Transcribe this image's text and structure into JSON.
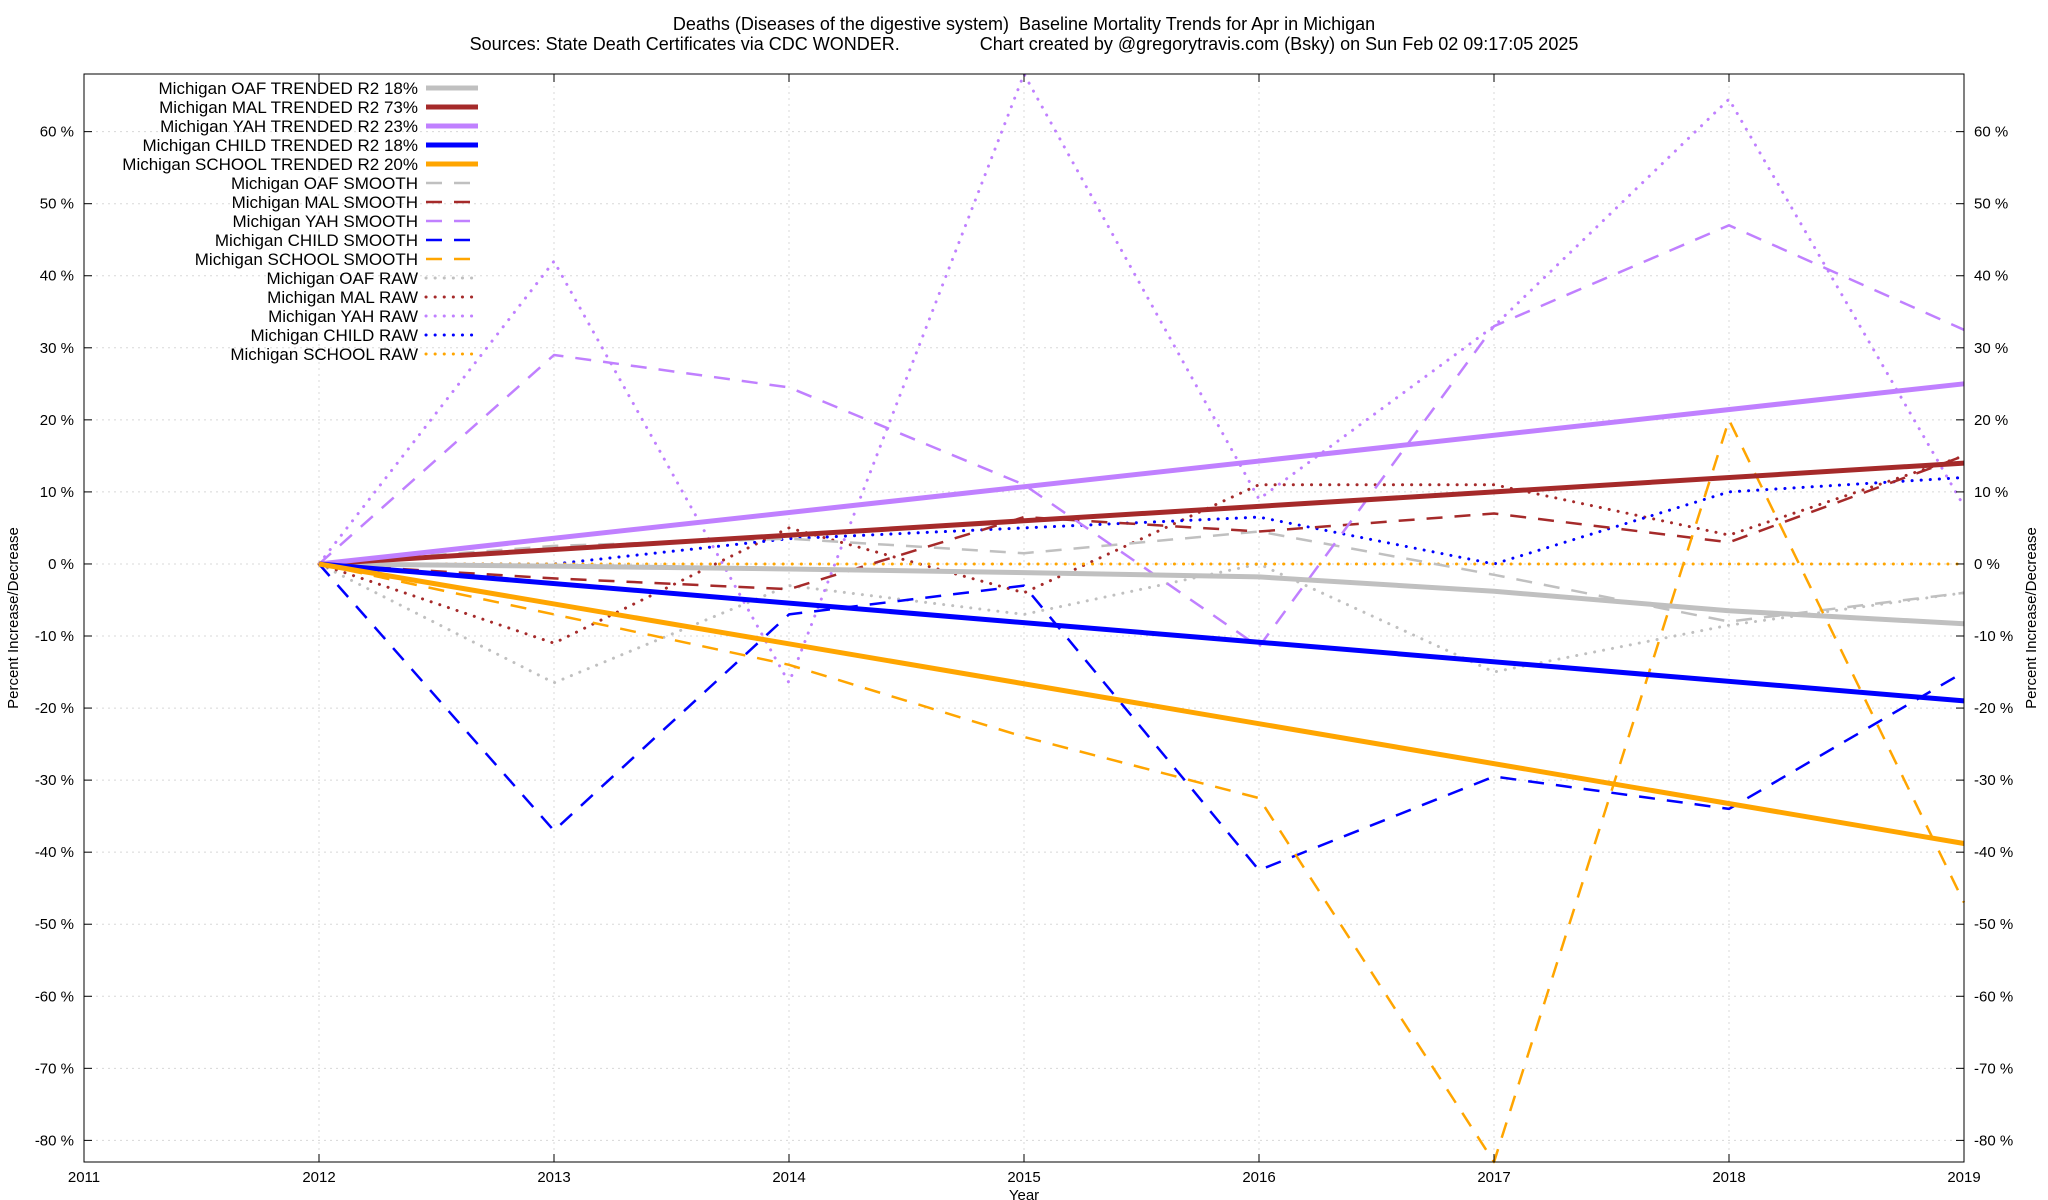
{
  "chart_data": {
    "type": "line",
    "title": "Deaths (Diseases of the digestive system)  Baseline Mortality Trends for Apr in Michigan",
    "subtitle": "Sources: State Death Certificates via CDC WONDER.                Chart created by @gregorytravis.com (Bsky) on Sun Feb 02 09:17:05 2025",
    "xlabel": "Year",
    "ylabel": "Percent Increase/Decrease",
    "y2label": "Percent Increase/Decrease",
    "xlim": [
      2011,
      2019
    ],
    "ylim": [
      -83,
      68
    ],
    "x_ticks": [
      "2011",
      "2012",
      "2013",
      "2014",
      "2015",
      "2016",
      "2017",
      "2018",
      "2019"
    ],
    "y_ticks": [
      {
        "v": 60,
        "label": "60 %"
      },
      {
        "v": 50,
        "label": "50 %"
      },
      {
        "v": 40,
        "label": "40 %"
      },
      {
        "v": 30,
        "label": "30 %"
      },
      {
        "v": 20,
        "label": "20 %"
      },
      {
        "v": 10,
        "label": "10 %"
      },
      {
        "v": 0,
        "label": "0 %"
      },
      {
        "v": -10,
        "label": "-10 %"
      },
      {
        "v": -20,
        "label": "-20 %"
      },
      {
        "v": -30,
        "label": "-30 %"
      },
      {
        "v": -40,
        "label": "-40 %"
      },
      {
        "v": -50,
        "label": "-50 %"
      },
      {
        "v": -60,
        "label": "-60 %"
      },
      {
        "v": -70,
        "label": "-70 %"
      },
      {
        "v": -80,
        "label": "-80 %"
      }
    ],
    "grid": true,
    "legend_position": "top-left",
    "series": [
      {
        "name": "Michigan OAF TRENDED R2  18%",
        "style": "solid",
        "color": "#c0c0c0",
        "x": [
          2012,
          2013,
          2014,
          2015,
          2016,
          2017,
          2018,
          2019
        ],
        "y": [
          0,
          -0.3,
          -0.7,
          -1.2,
          -1.8,
          -3.8,
          -6.5,
          -8.3
        ]
      },
      {
        "name": "Michigan MAL TRENDED R2  73%",
        "style": "solid",
        "color": "#a52a2a",
        "x": [
          2012,
          2019
        ],
        "y": [
          0,
          14
        ]
      },
      {
        "name": "Michigan YAH TRENDED R2  23%",
        "style": "solid",
        "color": "#c080ff",
        "x": [
          2012,
          2019
        ],
        "y": [
          0,
          25
        ]
      },
      {
        "name": "Michigan CHILD TRENDED R2  18%",
        "style": "solid",
        "color": "#0000ff",
        "x": [
          2012,
          2019
        ],
        "y": [
          0,
          -19
        ]
      },
      {
        "name": "Michigan SCHOOL TRENDED R2  20%",
        "style": "solid",
        "color": "#ffa500",
        "x": [
          2012,
          2019
        ],
        "y": [
          0,
          -38.8
        ]
      },
      {
        "name": "Michigan OAF SMOOTH",
        "style": "dashed",
        "color": "#c0c0c0",
        "x": [
          2012,
          2013,
          2014,
          2015,
          2016,
          2017,
          2018,
          2019
        ],
        "y": [
          0,
          2.5,
          3.5,
          1.5,
          4.5,
          -1.5,
          -8,
          -4
        ]
      },
      {
        "name": "Michigan MAL SMOOTH",
        "style": "dashed",
        "color": "#a52a2a",
        "x": [
          2012,
          2013,
          2014,
          2015,
          2016,
          2017,
          2018,
          2019
        ],
        "y": [
          0,
          -2,
          -3.5,
          6.5,
          4.5,
          7,
          3,
          15
        ]
      },
      {
        "name": "Michigan YAH SMOOTH",
        "style": "dashed",
        "color": "#c080ff",
        "x": [
          2012,
          2013,
          2014,
          2015,
          2016,
          2017,
          2018,
          2019
        ],
        "y": [
          0,
          29,
          24.5,
          11,
          -11.5,
          33,
          47,
          32.5
        ]
      },
      {
        "name": "Michigan CHILD SMOOTH",
        "style": "dashed",
        "color": "#0000ff",
        "x": [
          2012,
          2013,
          2014,
          2015,
          2016,
          2017,
          2018,
          2019
        ],
        "y": [
          0,
          -37,
          -7,
          -3,
          -42.5,
          -29.5,
          -34,
          -15
        ]
      },
      {
        "name": "Michigan SCHOOL SMOOTH",
        "style": "dashed",
        "color": "#ffa500",
        "x": [
          2012,
          2013,
          2014,
          2015,
          2016,
          2017,
          2018,
          2019
        ],
        "y": [
          0,
          -7,
          -14,
          -24,
          -32.5,
          -83,
          20,
          -47
        ]
      },
      {
        "name": "Michigan OAF RAW",
        "style": "dotted",
        "color": "#c0c0c0",
        "x": [
          2012,
          2013,
          2014,
          2015,
          2016,
          2017,
          2018,
          2019
        ],
        "y": [
          0,
          -16.5,
          -3,
          -7,
          0,
          -15,
          -8.5,
          -4
        ]
      },
      {
        "name": "Michigan MAL RAW",
        "style": "dotted",
        "color": "#a52a2a",
        "x": [
          2012,
          2013,
          2014,
          2015,
          2016,
          2017,
          2018,
          2019
        ],
        "y": [
          0,
          -11,
          5,
          -4,
          11,
          11,
          4,
          15
        ]
      },
      {
        "name": "Michigan YAH RAW",
        "style": "dotted",
        "color": "#c080ff",
        "x": [
          2012,
          2013,
          2014,
          2015,
          2016,
          2017,
          2018,
          2019
        ],
        "y": [
          0,
          42,
          -16.5,
          68,
          9,
          33,
          64.5,
          8
        ]
      },
      {
        "name": "Michigan CHILD RAW",
        "style": "dotted",
        "color": "#0000ff",
        "x": [
          2012,
          2013,
          2014,
          2015,
          2016,
          2017,
          2018,
          2019
        ],
        "y": [
          0,
          0,
          3.5,
          5,
          6.5,
          0,
          10,
          12
        ]
      },
      {
        "name": "Michigan SCHOOL RAW",
        "style": "dotted",
        "color": "#ffa500",
        "x": [
          2012,
          2013,
          2014,
          2015,
          2016,
          2017,
          2018,
          2019
        ],
        "y": [
          0,
          0,
          0,
          0,
          0,
          0,
          0,
          0
        ]
      }
    ]
  }
}
